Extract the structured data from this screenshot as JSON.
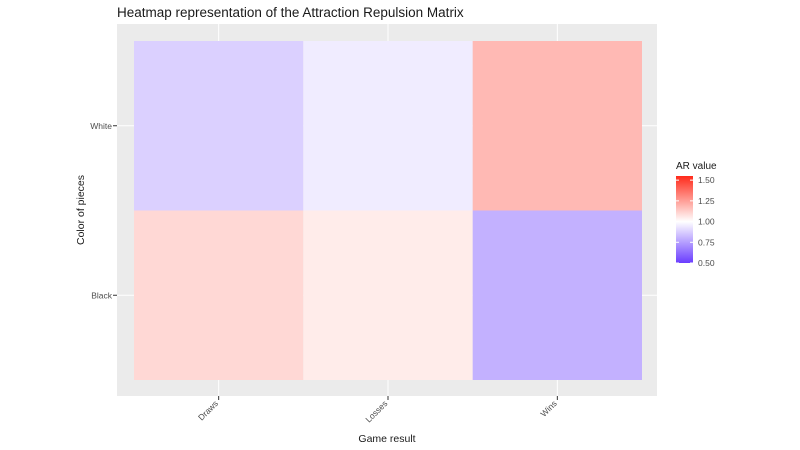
{
  "chart_data": {
    "type": "heatmap",
    "title": "Heatmap representation of the Attraction Repulsion Matrix",
    "xlabel": "Game result",
    "ylabel": "Color of pieces",
    "x_categories": [
      "Draws",
      "Losses",
      "Wins"
    ],
    "y_categories": [
      "Black",
      "White"
    ],
    "cells": [
      {
        "x": "Draws",
        "y": "White",
        "value": 0.88
      },
      {
        "x": "Losses",
        "y": "White",
        "value": 0.95
      },
      {
        "x": "Wins",
        "y": "White",
        "value": 1.18
      },
      {
        "x": "Draws",
        "y": "Black",
        "value": 1.1
      },
      {
        "x": "Losses",
        "y": "Black",
        "value": 1.05
      },
      {
        "x": "Wins",
        "y": "Black",
        "value": 0.8
      }
    ],
    "legend": {
      "title": "AR value",
      "position": "right",
      "ticks": [
        "0.50",
        "0.75",
        "1.00",
        "1.25",
        "1.50"
      ],
      "range": [
        0.5,
        1.55
      ],
      "colors": {
        "low": "#6a3dff",
        "mid": "#ffffff",
        "high": "#ff2a1a"
      },
      "midpoint": 1.0
    },
    "colors": {
      "panel": "#ebebeb",
      "grid": "#ffffff"
    },
    "grid": true
  }
}
